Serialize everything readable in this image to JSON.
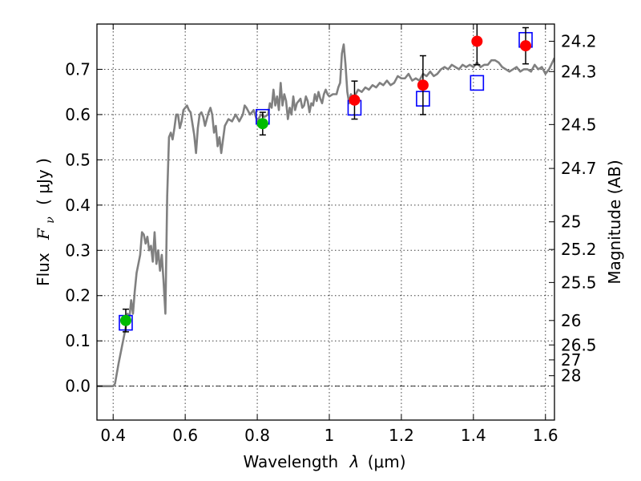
{
  "chart_data": {
    "type": "scatter",
    "xlabel_prefix": "Wavelength",
    "xlabel_symbol": "λ",
    "xlabel_unit": "(μm)",
    "ylabel_prefix": "Flux",
    "ylabel_symbol": "F",
    "ylabel_subscript": "ν",
    "ylabel_unit": "( μJy )",
    "y2label": "Magnitude (AB)",
    "xlim": [
      0.355,
      1.625
    ],
    "ylim": [
      -0.075,
      0.8
    ],
    "grid": true,
    "xticks": [
      0.4,
      0.6,
      0.8,
      1.0,
      1.2,
      1.4,
      1.6
    ],
    "xtick_labels": [
      "0.4",
      "0.6",
      "0.8",
      "1",
      "1.2",
      "1.4",
      "1.6"
    ],
    "yticks": [
      0.0,
      0.1,
      0.2,
      0.3,
      0.4,
      0.5,
      0.6,
      0.7
    ],
    "ytick_labels": [
      "0.0",
      "0.1",
      "0.2",
      "0.3",
      "0.4",
      "0.5",
      "0.6",
      "0.7"
    ],
    "magnitude_ticks": [
      {
        "label": "24.2",
        "flux": 0.762
      },
      {
        "label": "24.3",
        "flux": 0.695
      },
      {
        "label": "24.5",
        "flux": 0.578
      },
      {
        "label": "24.7",
        "flux": 0.481
      },
      {
        "label": "25",
        "flux": 0.363
      },
      {
        "label": "25.2",
        "flux": 0.302
      },
      {
        "label": "25.5",
        "flux": 0.229
      },
      {
        "label": "26",
        "flux": 0.145
      },
      {
        "label": "26.5",
        "flux": 0.091
      },
      {
        "label": "27",
        "flux": 0.058
      },
      {
        "label": "28",
        "flux": 0.023
      }
    ],
    "zero_line": 0.0,
    "series": [
      {
        "kind": "line",
        "color": "#808080",
        "points": [
          [
            0.355,
            0.0
          ],
          [
            0.4,
            0.0
          ],
          [
            0.405,
            0.005
          ],
          [
            0.415,
            0.05
          ],
          [
            0.425,
            0.09
          ],
          [
            0.435,
            0.13
          ],
          [
            0.44,
            0.16
          ],
          [
            0.445,
            0.15
          ],
          [
            0.45,
            0.19
          ],
          [
            0.455,
            0.16
          ],
          [
            0.46,
            0.21
          ],
          [
            0.465,
            0.25
          ],
          [
            0.47,
            0.27
          ],
          [
            0.475,
            0.29
          ],
          [
            0.48,
            0.34
          ],
          [
            0.485,
            0.335
          ],
          [
            0.49,
            0.315
          ],
          [
            0.495,
            0.33
          ],
          [
            0.5,
            0.3
          ],
          [
            0.505,
            0.31
          ],
          [
            0.51,
            0.275
          ],
          [
            0.515,
            0.34
          ],
          [
            0.52,
            0.27
          ],
          [
            0.525,
            0.3
          ],
          [
            0.53,
            0.255
          ],
          [
            0.535,
            0.29
          ],
          [
            0.54,
            0.23
          ],
          [
            0.545,
            0.16
          ],
          [
            0.55,
            0.42
          ],
          [
            0.555,
            0.55
          ],
          [
            0.56,
            0.56
          ],
          [
            0.565,
            0.545
          ],
          [
            0.57,
            0.57
          ],
          [
            0.575,
            0.6
          ],
          [
            0.58,
            0.6
          ],
          [
            0.585,
            0.57
          ],
          [
            0.59,
            0.585
          ],
          [
            0.595,
            0.61
          ],
          [
            0.6,
            0.615
          ],
          [
            0.605,
            0.62
          ],
          [
            0.61,
            0.61
          ],
          [
            0.615,
            0.605
          ],
          [
            0.62,
            0.58
          ],
          [
            0.625,
            0.555
          ],
          [
            0.63,
            0.515
          ],
          [
            0.635,
            0.57
          ],
          [
            0.64,
            0.6
          ],
          [
            0.645,
            0.605
          ],
          [
            0.65,
            0.595
          ],
          [
            0.655,
            0.575
          ],
          [
            0.66,
            0.59
          ],
          [
            0.665,
            0.605
          ],
          [
            0.67,
            0.615
          ],
          [
            0.675,
            0.6
          ],
          [
            0.68,
            0.56
          ],
          [
            0.685,
            0.575
          ],
          [
            0.69,
            0.53
          ],
          [
            0.695,
            0.55
          ],
          [
            0.7,
            0.515
          ],
          [
            0.705,
            0.545
          ],
          [
            0.71,
            0.575
          ],
          [
            0.72,
            0.59
          ],
          [
            0.73,
            0.585
          ],
          [
            0.74,
            0.6
          ],
          [
            0.75,
            0.585
          ],
          [
            0.76,
            0.6
          ],
          [
            0.765,
            0.62
          ],
          [
            0.77,
            0.615
          ],
          [
            0.78,
            0.6
          ],
          [
            0.79,
            0.61
          ],
          [
            0.8,
            0.585
          ],
          [
            0.81,
            0.6
          ],
          [
            0.82,
            0.595
          ],
          [
            0.83,
            0.6
          ],
          [
            0.835,
            0.625
          ],
          [
            0.84,
            0.615
          ],
          [
            0.845,
            0.655
          ],
          [
            0.85,
            0.62
          ],
          [
            0.855,
            0.64
          ],
          [
            0.86,
            0.61
          ],
          [
            0.865,
            0.67
          ],
          [
            0.87,
            0.62
          ],
          [
            0.875,
            0.645
          ],
          [
            0.88,
            0.63
          ],
          [
            0.885,
            0.59
          ],
          [
            0.89,
            0.615
          ],
          [
            0.895,
            0.6
          ],
          [
            0.9,
            0.64
          ],
          [
            0.905,
            0.61
          ],
          [
            0.91,
            0.625
          ],
          [
            0.92,
            0.635
          ],
          [
            0.925,
            0.615
          ],
          [
            0.93,
            0.62
          ],
          [
            0.935,
            0.64
          ],
          [
            0.94,
            0.63
          ],
          [
            0.945,
            0.605
          ],
          [
            0.95,
            0.625
          ],
          [
            0.955,
            0.62
          ],
          [
            0.96,
            0.645
          ],
          [
            0.965,
            0.63
          ],
          [
            0.97,
            0.65
          ],
          [
            0.975,
            0.635
          ],
          [
            0.98,
            0.625
          ],
          [
            0.985,
            0.645
          ],
          [
            0.99,
            0.655
          ],
          [
            0.995,
            0.645
          ],
          [
            1.0,
            0.64
          ],
          [
            1.01,
            0.645
          ],
          [
            1.02,
            0.645
          ],
          [
            1.025,
            0.66
          ],
          [
            1.03,
            0.67
          ],
          [
            1.035,
            0.735
          ],
          [
            1.04,
            0.755
          ],
          [
            1.045,
            0.71
          ],
          [
            1.05,
            0.65
          ],
          [
            1.055,
            0.625
          ],
          [
            1.06,
            0.645
          ],
          [
            1.065,
            0.635
          ],
          [
            1.07,
            0.64
          ],
          [
            1.08,
            0.655
          ],
          [
            1.09,
            0.65
          ],
          [
            1.1,
            0.66
          ],
          [
            1.11,
            0.655
          ],
          [
            1.12,
            0.665
          ],
          [
            1.13,
            0.66
          ],
          [
            1.14,
            0.67
          ],
          [
            1.15,
            0.665
          ],
          [
            1.16,
            0.675
          ],
          [
            1.17,
            0.665
          ],
          [
            1.18,
            0.67
          ],
          [
            1.19,
            0.685
          ],
          [
            1.2,
            0.68
          ],
          [
            1.21,
            0.68
          ],
          [
            1.22,
            0.69
          ],
          [
            1.23,
            0.675
          ],
          [
            1.24,
            0.68
          ],
          [
            1.25,
            0.675
          ],
          [
            1.26,
            0.69
          ],
          [
            1.27,
            0.685
          ],
          [
            1.28,
            0.695
          ],
          [
            1.29,
            0.685
          ],
          [
            1.3,
            0.69
          ],
          [
            1.31,
            0.7
          ],
          [
            1.32,
            0.705
          ],
          [
            1.33,
            0.7
          ],
          [
            1.34,
            0.71
          ],
          [
            1.35,
            0.705
          ],
          [
            1.36,
            0.7
          ],
          [
            1.37,
            0.71
          ],
          [
            1.38,
            0.705
          ],
          [
            1.39,
            0.71
          ],
          [
            1.4,
            0.705
          ],
          [
            1.41,
            0.715
          ],
          [
            1.42,
            0.705
          ],
          [
            1.43,
            0.71
          ],
          [
            1.44,
            0.71
          ],
          [
            1.45,
            0.72
          ],
          [
            1.46,
            0.72
          ],
          [
            1.47,
            0.715
          ],
          [
            1.48,
            0.705
          ],
          [
            1.49,
            0.7
          ],
          [
            1.5,
            0.695
          ],
          [
            1.51,
            0.7
          ],
          [
            1.52,
            0.705
          ],
          [
            1.53,
            0.695
          ],
          [
            1.54,
            0.7
          ],
          [
            1.55,
            0.7
          ],
          [
            1.56,
            0.695
          ],
          [
            1.57,
            0.71
          ],
          [
            1.58,
            0.7
          ],
          [
            1.59,
            0.705
          ],
          [
            1.6,
            0.69
          ],
          [
            1.61,
            0.7
          ],
          [
            1.625,
            0.725
          ]
        ]
      },
      {
        "kind": "open-square",
        "color": "#0000ff",
        "x": [
          0.435,
          0.815,
          1.07,
          1.26,
          1.41,
          1.545
        ],
        "y": [
          0.14,
          0.595,
          0.615,
          0.635,
          0.67,
          0.765
        ]
      },
      {
        "kind": "filled-circle",
        "color": "#00bb00",
        "x": [
          0.435,
          0.815
        ],
        "y": [
          0.145,
          0.58
        ],
        "yerr": [
          0.025,
          0.025
        ]
      },
      {
        "kind": "filled-circle",
        "color": "#ff0000",
        "x": [
          1.07,
          1.26,
          1.41,
          1.545
        ],
        "y": [
          0.632,
          0.665,
          0.762,
          0.752
        ],
        "yerr": [
          0.042,
          0.065,
          0.052,
          0.04
        ]
      }
    ]
  }
}
